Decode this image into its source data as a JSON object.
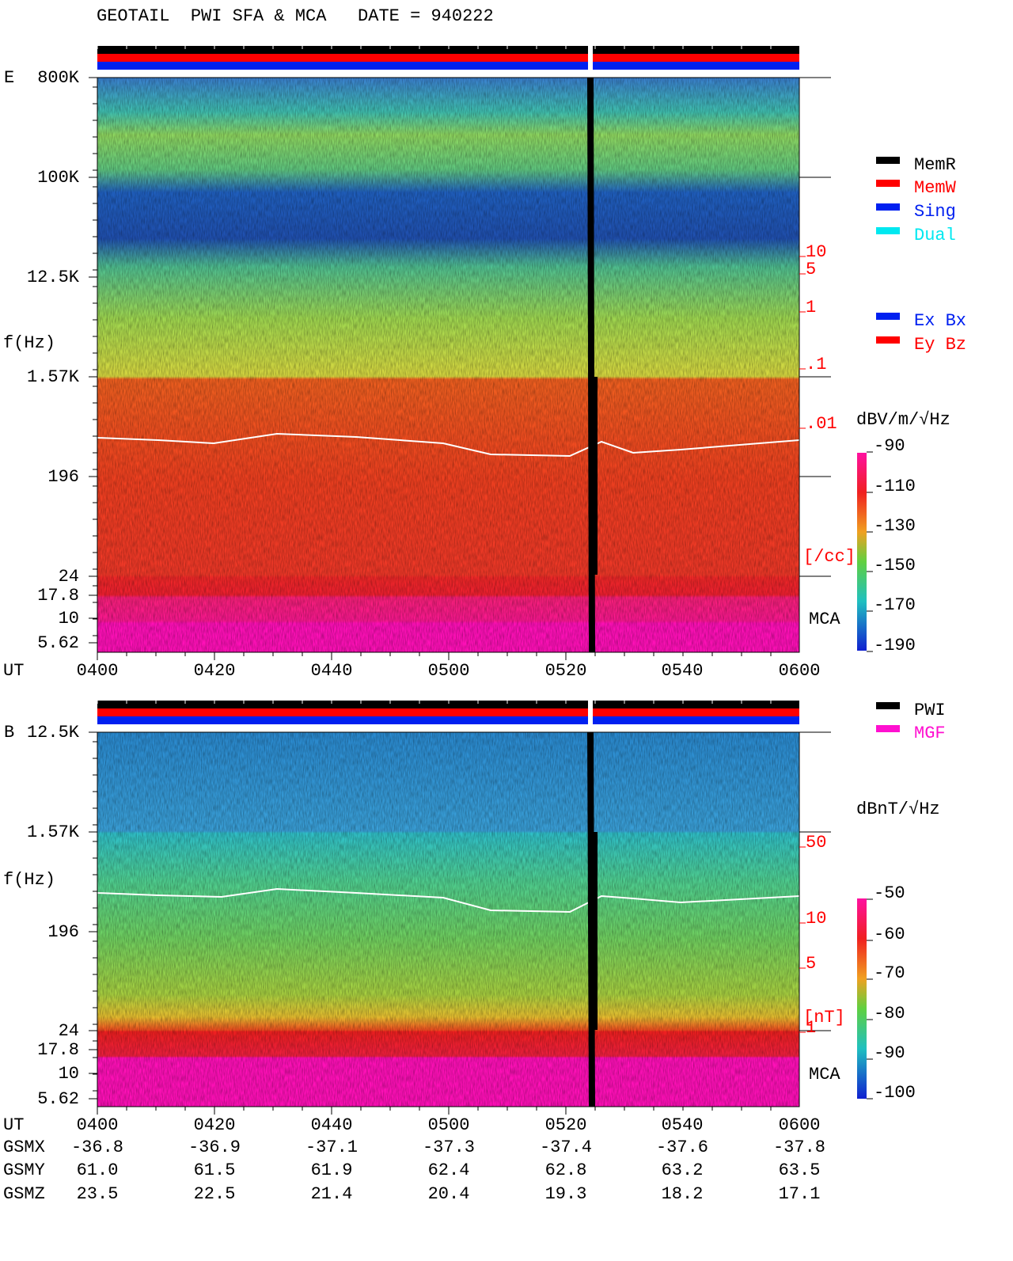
{
  "header": {
    "title": "GEOTAIL  PWI SFA & MCA   DATE = 940222"
  },
  "panels": [
    {
      "label": "E",
      "y_label": "f(Hz)",
      "freq_ticks": [
        "800K",
        "100K",
        "12.5K",
        "1.57K",
        "196",
        "24",
        "17.8",
        "10",
        "5.62"
      ],
      "time_label": "UT",
      "time_ticks": [
        "0400",
        "0420",
        "0440",
        "0500",
        "0520",
        "0540",
        "0600"
      ],
      "density_ticks": [
        "10",
        "5",
        "1",
        ".1",
        ".01"
      ],
      "density_unit": "[/cc]",
      "mca_label": "MCA",
      "units": "dBV/m/√Hz",
      "colorbar_ticks": [
        "-90",
        "-110",
        "-130",
        "-150",
        "-170",
        "-190"
      ],
      "legend": [
        "MemR",
        "MemW",
        "Sing",
        "Dual",
        "Ex Bx",
        "Ey Bz"
      ]
    },
    {
      "label": "B",
      "y_label": "f(Hz)",
      "freq_ticks": [
        "12.5K",
        "1.57K",
        "196",
        "24",
        "17.8",
        "10",
        "5.62"
      ],
      "density_ticks": [
        "50",
        "10",
        "5",
        "1"
      ],
      "density_unit": "[nT]",
      "mca_label": "MCA",
      "units": "dBnT/√Hz",
      "colorbar_ticks": [
        "-50",
        "-60",
        "-70",
        "-80",
        "-90",
        "-100"
      ],
      "legend": [
        "PWI",
        "MGF"
      ]
    }
  ],
  "orbit": {
    "rows": [
      {
        "label": "UT",
        "values": [
          "0400",
          "0420",
          "0440",
          "0500",
          "0520",
          "0540",
          "0600"
        ]
      },
      {
        "label": "GSMX",
        "values": [
          "-36.8",
          "-36.9",
          "-37.1",
          "-37.3",
          "-37.4",
          "-37.6",
          "-37.8"
        ]
      },
      {
        "label": "GSMY",
        "values": [
          "61.0",
          "61.5",
          "61.9",
          "62.4",
          "62.8",
          "63.2",
          "63.5"
        ]
      },
      {
        "label": "GSMZ",
        "values": [
          "23.5",
          "22.5",
          "21.4",
          "20.4",
          "19.3",
          "18.2",
          "17.1"
        ]
      }
    ]
  }
}
